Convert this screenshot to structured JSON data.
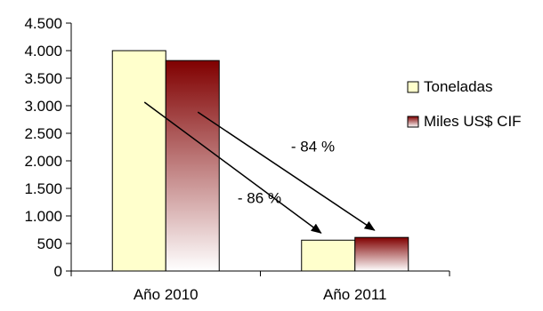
{
  "chart_data": {
    "type": "bar",
    "categories": [
      "Año 2010",
      "Año 2011"
    ],
    "series": [
      {
        "name": "Toneladas",
        "values": [
          4000,
          560
        ],
        "color": "#FFFFCC"
      },
      {
        "name": "Miles US$ CIF",
        "values": [
          3820,
          610
        ],
        "color": "#800000"
      }
    ],
    "ylim": [
      0,
      4500
    ],
    "yticks": [
      {
        "value": 0,
        "label": "0"
      },
      {
        "value": 500,
        "label": "500"
      },
      {
        "value": 1000,
        "label": "1.000"
      },
      {
        "value": 1500,
        "label": "1.500"
      },
      {
        "value": 2000,
        "label": "2.000"
      },
      {
        "value": 2500,
        "label": "2.500"
      },
      {
        "value": 3000,
        "label": "3.000"
      },
      {
        "value": 3500,
        "label": "3.500"
      },
      {
        "value": 4000,
        "label": "4.000"
      },
      {
        "value": 4500,
        "label": "4.500"
      }
    ],
    "grid": false,
    "legend_position": "right",
    "annotations": [
      {
        "text": "- 84 %",
        "series": "Miles US$ CIF"
      },
      {
        "text": "- 86 %",
        "series": "Toneladas"
      }
    ]
  }
}
